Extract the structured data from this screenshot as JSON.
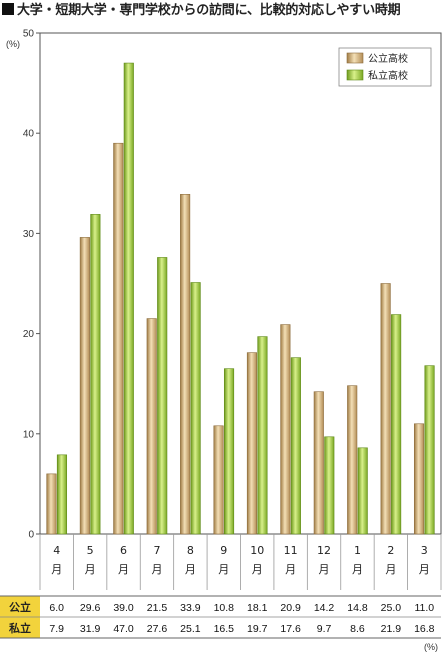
{
  "page": {
    "title": "大学・短期大学・専門学校からの訪問に、比較的対応しやすい時期"
  },
  "colors": {
    "public": "#c8a46e",
    "private": "#9bc63b",
    "tableHead": "#f2d33c"
  },
  "chart_data": {
    "type": "bar",
    "title": "大学・短期大学・専門学校からの訪問に、比較的対応しやすい時期",
    "ylabel": "(%)",
    "ylim": [
      0,
      50
    ],
    "yticks": [
      "0",
      "10",
      "20",
      "30",
      "40",
      "50"
    ],
    "categories": [
      "4",
      "5",
      "6",
      "7",
      "8",
      "9",
      "10",
      "11",
      "12",
      "1",
      "2",
      "3"
    ],
    "category_suffix": "月",
    "series": [
      {
        "name": "公立高校",
        "row_label": "公立",
        "values": [
          6.0,
          29.6,
          39.0,
          21.5,
          33.9,
          10.8,
          18.1,
          20.9,
          14.2,
          14.8,
          25.0,
          11.0
        ]
      },
      {
        "name": "私立高校",
        "row_label": "私立",
        "values": [
          7.9,
          31.9,
          47.0,
          27.6,
          25.1,
          16.5,
          19.7,
          17.6,
          9.7,
          8.6,
          21.9,
          16.8
        ]
      }
    ],
    "table_unit": "(%)",
    "legend_position": "top-right",
    "grid": false
  }
}
